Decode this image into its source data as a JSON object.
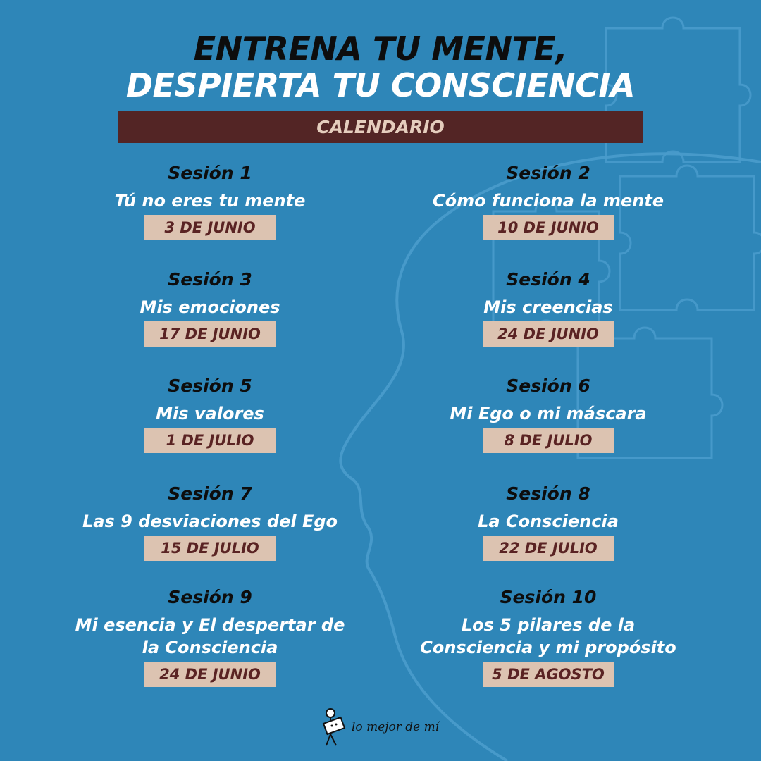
{
  "header": {
    "line1": "ENTRENA TU MENTE,",
    "line2": "DESPIERTA TU CONSCIENCIA",
    "banner": "CALENDARIO"
  },
  "sessions": [
    {
      "label": "Sesión 1",
      "topic": "Tú no eres tu mente",
      "date": "3 DE JUNIO"
    },
    {
      "label": "Sesión 2",
      "topic": "Cómo funciona la mente",
      "date": "10 DE JUNIO"
    },
    {
      "label": "Sesión 3",
      "topic": "Mis emociones",
      "date": "17 DE JUNIO"
    },
    {
      "label": "Sesión 4",
      "topic": "Mis creencias",
      "date": "24 DE JUNIO"
    },
    {
      "label": "Sesión 5",
      "topic": "Mis valores",
      "date": "1 DE JULIO"
    },
    {
      "label": "Sesión 6",
      "topic": "Mi Ego o mi máscara",
      "date": "8 DE JULIO"
    },
    {
      "label": "Sesión 7",
      "topic": "Las 9 desviaciones del Ego",
      "date": "15 DE JULIO"
    },
    {
      "label": "Sesión 8",
      "topic": "La Consciencia",
      "date": "22 DE JULIO"
    },
    {
      "label": "Sesión 9",
      "topic_line1": "Mi esencia y El despertar de",
      "topic_line2": "la Consciencia",
      "date": "24 DE JUNIO"
    },
    {
      "label": "Sesión 10",
      "topic_line1": "Los 5 pilares de la",
      "topic_line2": "Consciencia y mi propósito",
      "date": "5 DE AGOSTO"
    }
  ],
  "footer": {
    "brand": "lo mejor de mí",
    "logo_icon": "stick-figure-holding-sign-icon"
  },
  "colors": {
    "background": "#2e86b8",
    "banner": "#532525",
    "banner_text": "#e5cdbd",
    "date_box": "#dcc3b1",
    "date_text": "#5a2323",
    "title_dark": "#0d0d0d",
    "title_light": "#ffffff"
  }
}
